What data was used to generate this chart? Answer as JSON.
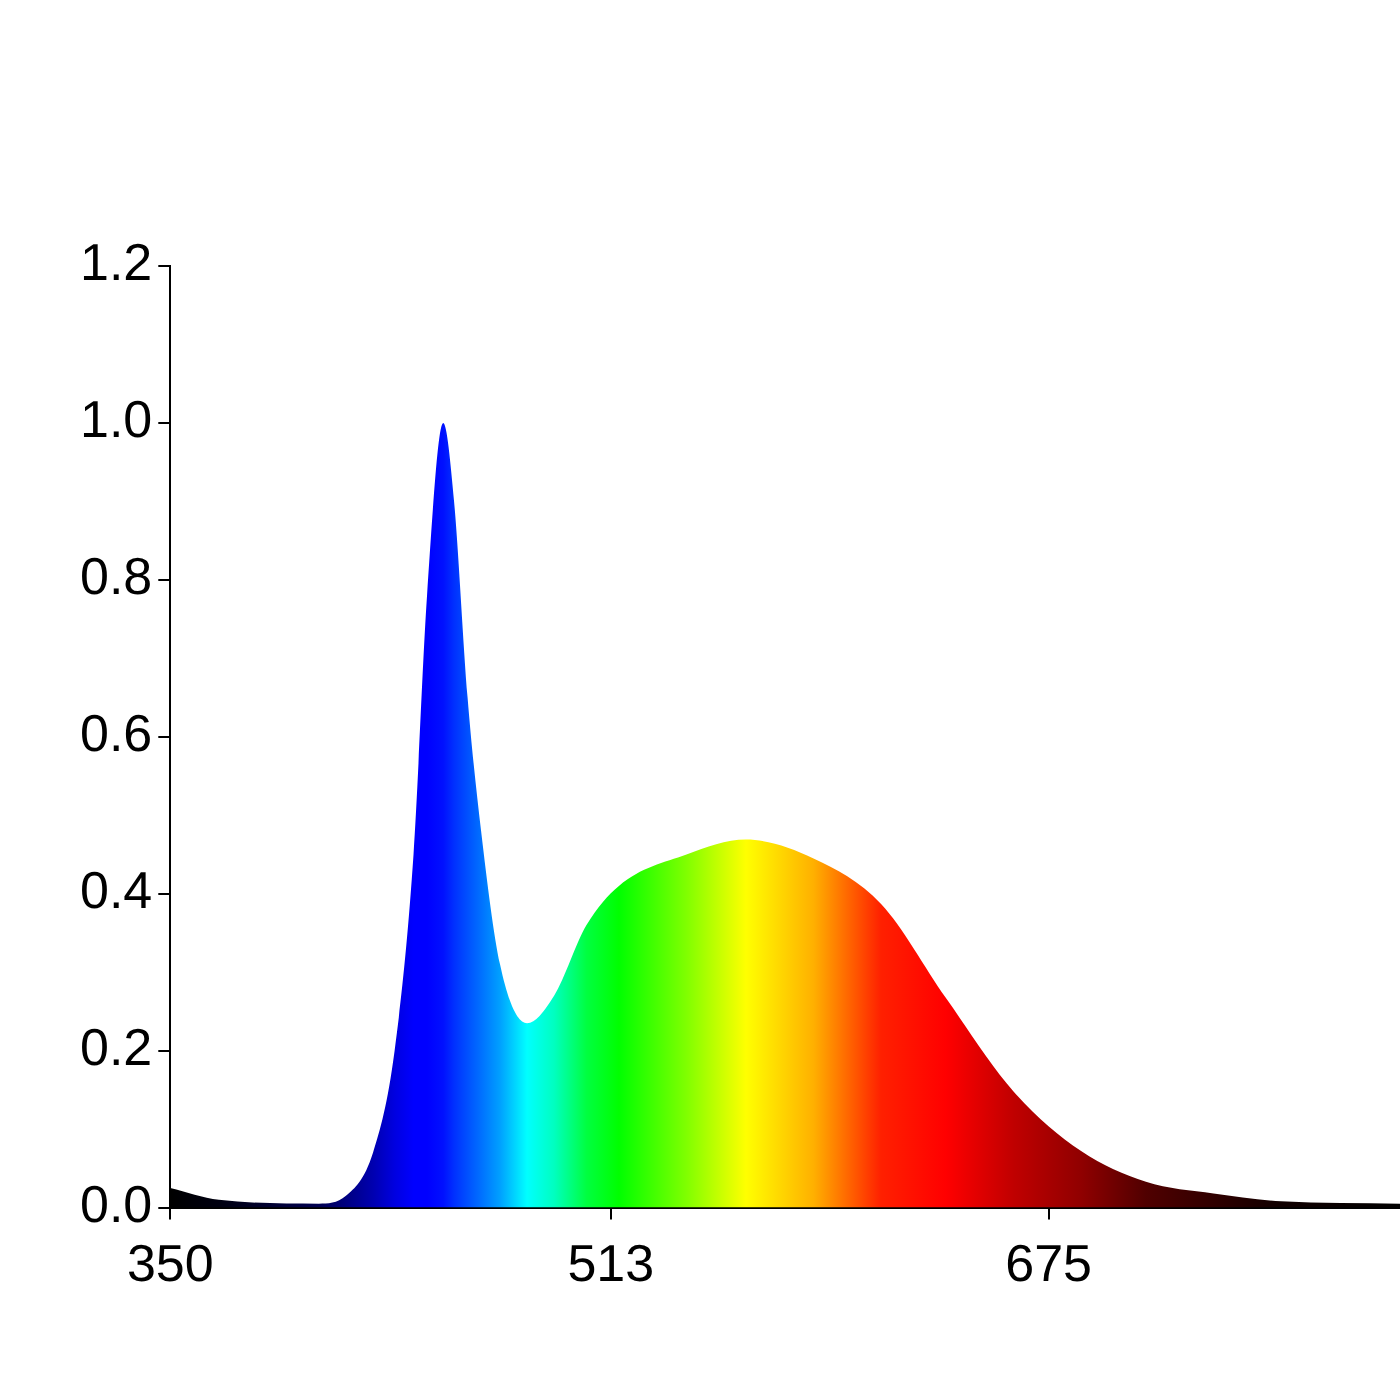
{
  "chart_data": {
    "type": "area",
    "marker": "none",
    "x": [
      350,
      368,
      405,
      415,
      425,
      433,
      440,
      445,
      451,
      455,
      460,
      465,
      472,
      482,
      492,
      504,
      516,
      541,
      563,
      588,
      613,
      637,
      662,
      687,
      711,
      736,
      761,
      805
    ],
    "series": [
      {
        "values": [
          0.025,
          0.01,
          0.005,
          0.015,
          0.07,
          0.2,
          0.45,
          0.78,
          1.0,
          0.9,
          0.65,
          0.48,
          0.31,
          0.235,
          0.27,
          0.36,
          0.41,
          0.45,
          0.469,
          0.445,
          0.387,
          0.267,
          0.148,
          0.072,
          0.033,
          0.018,
          0.008,
          0.005
        ],
        "colors": [
          "#000000",
          "#000010",
          "#000050",
          "#000080",
          "#0000b0",
          "#0000e0",
          "#0000ff",
          "#0000ff",
          "#0010ff",
          "#0030ff",
          "#0050ff",
          "#0070ff",
          "#00a0ff",
          "#00ffff",
          "#00ffc0",
          "#00ff40",
          "#00ff00",
          "#80ff00",
          "#ffff00",
          "#ffb000",
          "#ff2000",
          "#ff0000",
          "#c00000",
          "#900000",
          "#500000",
          "#300000",
          "#100000",
          "#000000"
        ]
      }
    ],
    "xlim": [
      350,
      805
    ],
    "ylim": [
      0,
      1.2
    ],
    "xticks": [
      350,
      513,
      675
    ],
    "yticks": [
      {
        "value": 0,
        "label": "0.0"
      },
      0.2,
      0.4,
      0.6,
      0.8,
      {
        "value": 1,
        "label": "1.0"
      },
      1.2
    ]
  }
}
